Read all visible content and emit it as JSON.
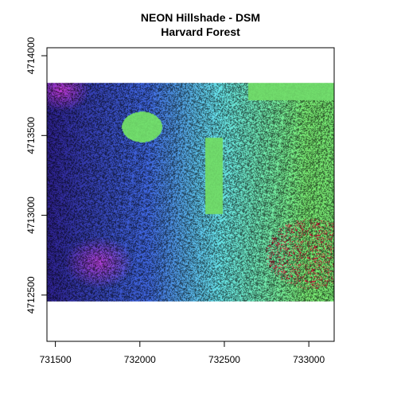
{
  "title": "NEON Hillshade - DSM",
  "subtitle": "Harvard Forest",
  "chart_data": {
    "type": "heatmap",
    "title": "NEON Hillshade - DSM",
    "subtitle": "Harvard Forest",
    "xlabel": "",
    "ylabel": "",
    "xlim": [
      731450,
      733150
    ],
    "ylim": [
      4712210,
      4714050
    ],
    "x_ticks": [
      731500,
      732000,
      732500,
      733000
    ],
    "y_ticks": [
      4712500,
      4713000,
      4713500,
      4714000
    ],
    "x_tick_labels": [
      "731500",
      "732000",
      "732500",
      "733000"
    ],
    "y_tick_labels": [
      "4712500",
      "4713000",
      "4713500",
      "4714000"
    ],
    "raster_extent": {
      "xmin": 731450,
      "xmax": 733150,
      "ymin": 4712460,
      "ymax": 4713830
    },
    "palette": [
      "#2b1f86",
      "#3a5fcf",
      "#5fd3d8",
      "#6fd86a",
      "#2d7a2a",
      "#d21a3a",
      "#c43ad4"
    ],
    "legend": "none",
    "grid": false
  }
}
